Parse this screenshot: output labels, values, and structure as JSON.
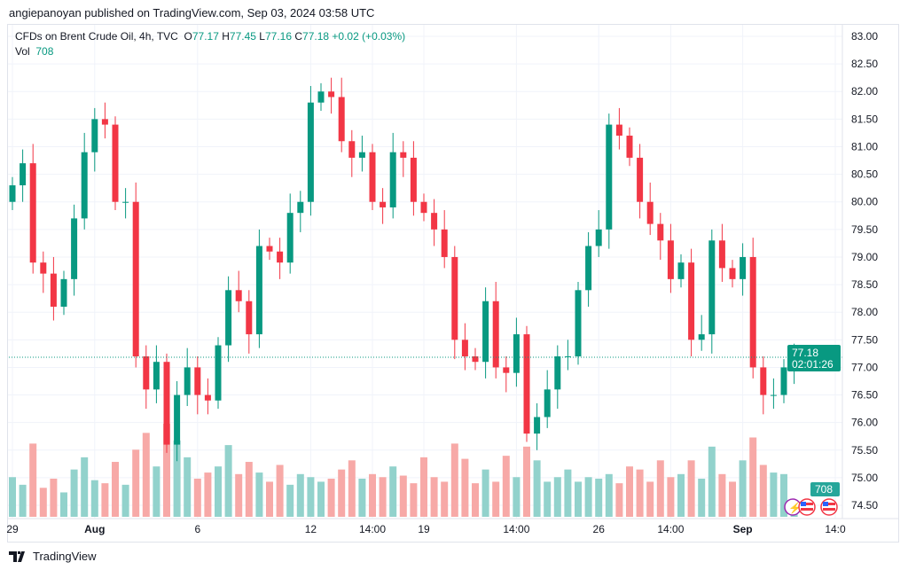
{
  "header": {
    "published": "angiepanoyan published on TradingView.com, Sep 03, 2024 03:58 UTC"
  },
  "legend": {
    "symbol": "CFDs on Brent Crude Oil, 4h, TVC",
    "o_label": "O",
    "o": "77.17",
    "h_label": "H",
    "h": "77.45",
    "l_label": "L",
    "l": "77.16",
    "c_label": "C",
    "c": "77.18",
    "change": "+0.02 (+0.03%)",
    "vol_label": "Vol",
    "vol": "708"
  },
  "price_tag": {
    "price": "77.18",
    "countdown": "02:01:26",
    "volume": "708"
  },
  "footer": {
    "brand": "TradingView"
  },
  "colors": {
    "up": "#089981",
    "down": "#f23645",
    "up_vol": "#92d2cc",
    "down_vol": "#f7a9a7"
  },
  "chart_data": {
    "type": "candlestick",
    "title": "CFDs on Brent Crude Oil, 4h, TVC",
    "ylim": [
      74.4,
      83.1
    ],
    "y_ticks": [
      "83.00",
      "82.50",
      "82.00",
      "81.50",
      "81.00",
      "80.50",
      "80.00",
      "79.50",
      "79.00",
      "78.50",
      "78.00",
      "77.50",
      "77.00",
      "76.50",
      "76.00",
      "75.50",
      "75.00",
      "74.50"
    ],
    "x_ticks": [
      {
        "index": 0,
        "label": "29"
      },
      {
        "index": 8,
        "label": "Aug"
      },
      {
        "index": 18,
        "label": "6"
      },
      {
        "index": 29,
        "label": "12"
      },
      {
        "index": 35,
        "label": "14:00"
      },
      {
        "index": 40,
        "label": "19"
      },
      {
        "index": 49,
        "label": "14:00"
      },
      {
        "index": 57,
        "label": "26"
      },
      {
        "index": 64,
        "label": "14:00"
      },
      {
        "index": 71,
        "label": "Sep"
      },
      {
        "index": 80,
        "label": "14:0"
      }
    ],
    "first_open": 80.0,
    "close": [
      80.3,
      80.7,
      78.9,
      78.7,
      78.1,
      78.6,
      79.7,
      80.9,
      81.5,
      81.4,
      80.0,
      80.0,
      77.2,
      76.6,
      77.1,
      75.6,
      76.5,
      77.0,
      76.5,
      76.4,
      77.4,
      78.4,
      78.2,
      77.6,
      79.2,
      79.1,
      78.9,
      79.8,
      80.0,
      81.8,
      82.0,
      81.9,
      81.1,
      80.8,
      80.9,
      80.0,
      79.9,
      80.9,
      80.8,
      80.0,
      79.8,
      79.5,
      79.0,
      77.5,
      77.2,
      77.1,
      78.2,
      77.0,
      76.9,
      77.6,
      75.8,
      76.1,
      76.6,
      77.2,
      77.2,
      78.4,
      79.2,
      79.5,
      81.4,
      81.2,
      80.8,
      80.0,
      79.6,
      79.3,
      78.6,
      78.9,
      77.5,
      77.6,
      79.3,
      78.8,
      78.6,
      79.0,
      77.0,
      76.5,
      76.5,
      77.0,
      77.18
    ],
    "volume": [
      2600,
      2100,
      4800,
      1900,
      2500,
      1600,
      3100,
      3900,
      2400,
      2200,
      3600,
      2100,
      4400,
      5500,
      3300,
      6100,
      5000,
      3900,
      2500,
      2900,
      3300,
      4700,
      2800,
      3600,
      2900,
      2300,
      3400,
      2100,
      2800,
      2600,
      2300,
      2500,
      3100,
      3700,
      2500,
      2800,
      2600,
      3300,
      2700,
      2200,
      3900,
      2600,
      2300,
      4800,
      3800,
      2200,
      3100,
      2300,
      4000,
      2600,
      4600,
      3700,
      2300,
      2600,
      3100,
      2300,
      2600,
      2500,
      2800,
      2200,
      3300,
      3100,
      2300,
      3700,
      2600,
      2800,
      3700,
      2500,
      4600,
      2800,
      2300,
      3700,
      5200,
      3400,
      2900,
      2800,
      708
    ]
  }
}
